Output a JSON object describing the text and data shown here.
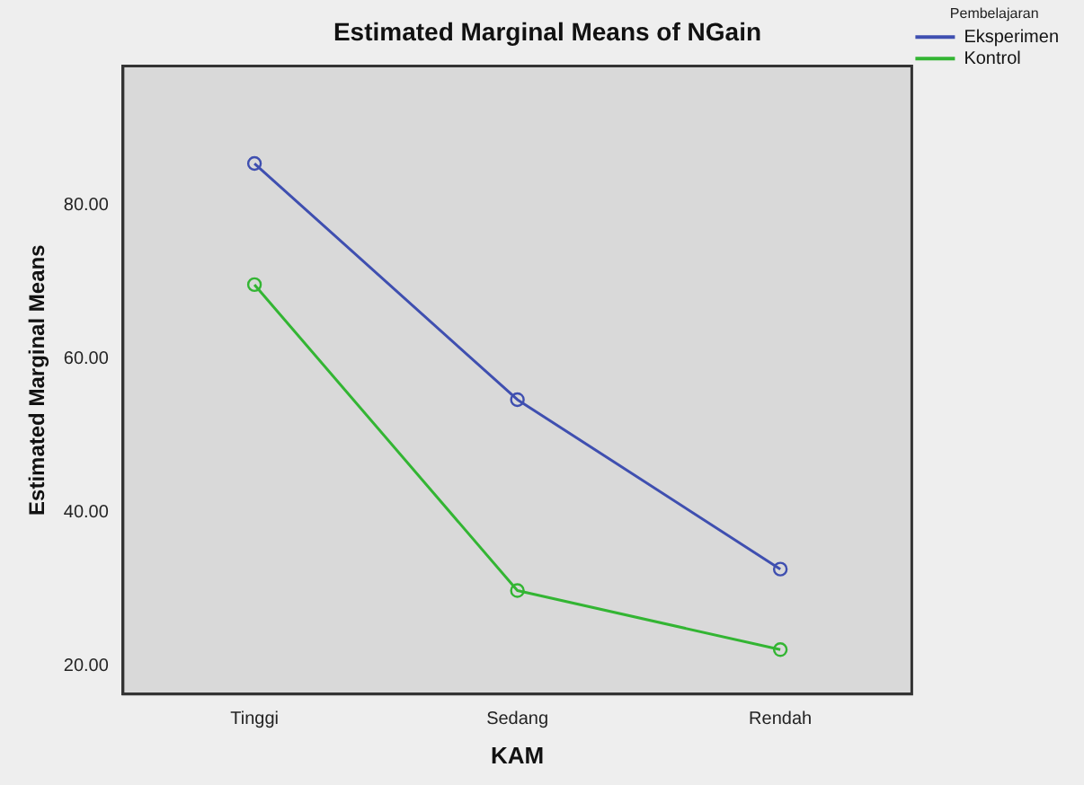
{
  "chart_data": {
    "type": "line",
    "title": "Estimated Marginal Means of NGain",
    "xlabel": "KAM",
    "ylabel": "Estimated Marginal Means",
    "legend_title": "Pembelajaran",
    "categories": [
      "Tinggi",
      "Sedang",
      "Rendah"
    ],
    "series": [
      {
        "name": "Eksperimen",
        "color": "#3f4fb0",
        "values": [
          85.5,
          54.7,
          32.6
        ]
      },
      {
        "name": "Kontrol",
        "color": "#33b533",
        "values": [
          69.7,
          29.8,
          22.1
        ]
      }
    ],
    "ylim": [
      16.3,
      98.2
    ],
    "yticks": [
      {
        "value": 20,
        "label": "20.00"
      },
      {
        "value": 40,
        "label": "40.00"
      },
      {
        "value": 60,
        "label": "60.00"
      },
      {
        "value": 80,
        "label": "80.00"
      }
    ],
    "grid": false,
    "legend": "right",
    "marker": "circle",
    "line_style": "solid"
  }
}
